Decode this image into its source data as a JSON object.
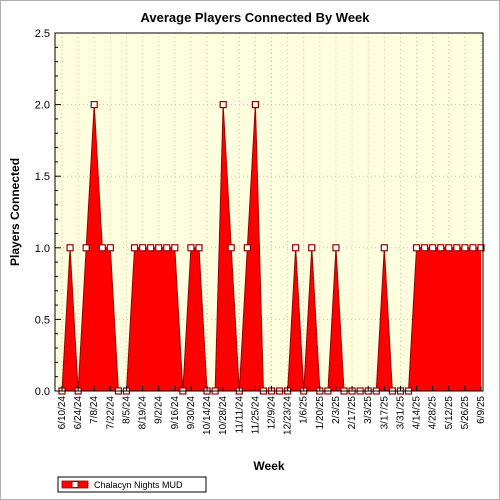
{
  "chart_data": {
    "type": "area",
    "title": "Average Players Connected By Week",
    "xlabel": "Week",
    "ylabel": "Players Connected",
    "ylim": [
      0,
      2.5
    ],
    "yticks": [
      "0.0",
      "0.5",
      "1.0",
      "1.5",
      "2.0",
      "2.5"
    ],
    "grid": true,
    "legend_position": "bottom-left",
    "colors": {
      "series": "#ff0000",
      "series_edge": "#990000",
      "plot_bg": "#ffffe0",
      "marker_fill": "#ffffff"
    },
    "x_tick_labels": [
      "6/10/24",
      "6/24/24",
      "7/8/24",
      "7/22/24",
      "8/5/24",
      "8/19/24",
      "9/2/24",
      "9/16/24",
      "9/30/24",
      "10/14/24",
      "10/28/24",
      "11/11/24",
      "11/25/24",
      "12/9/24",
      "12/23/24",
      "1/6/25",
      "1/20/25",
      "2/3/25",
      "2/17/25",
      "3/3/25",
      "3/17/25",
      "3/31/25",
      "4/14/25",
      "4/28/25",
      "5/12/25",
      "5/26/25",
      "6/9/25"
    ],
    "series": [
      {
        "name": "Chalacyn Nights MUD",
        "values": [
          0,
          1,
          0,
          1,
          2,
          1,
          1,
          0,
          0,
          1,
          1,
          1,
          1,
          1,
          1,
          0,
          1,
          1,
          0,
          0,
          2,
          1,
          0,
          1,
          2,
          0,
          0,
          0,
          0,
          1,
          0,
          1,
          0,
          0,
          1,
          0,
          0,
          0,
          0,
          0,
          1,
          0,
          0,
          0,
          1,
          1,
          1,
          1,
          1,
          1,
          1,
          1,
          1
        ]
      }
    ]
  }
}
